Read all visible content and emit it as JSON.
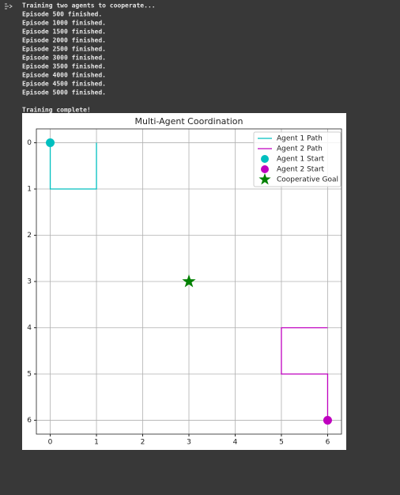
{
  "console": {
    "lines": [
      "Training two agents to cooperate...",
      "Episode 500 finished.",
      "Episode 1000 finished.",
      "Episode 1500 finished.",
      "Episode 2000 finished.",
      "Episode 2500 finished.",
      "Episode 3000 finished.",
      "Episode 3500 finished.",
      "Episode 4000 finished.",
      "Episode 4500 finished.",
      "Episode 5000 finished."
    ],
    "final": "Training complete!"
  },
  "chart_data": {
    "type": "line",
    "title": "Multi-Agent Coordination",
    "series": [
      {
        "name": "Agent 1 Path",
        "kind": "line",
        "color": "#00bfbf",
        "x": [
          0,
          0,
          1,
          1
        ],
        "y": [
          0,
          1,
          1,
          0
        ]
      },
      {
        "name": "Agent 2 Path",
        "kind": "line",
        "color": "#bf00bf",
        "x": [
          6,
          6,
          5,
          5,
          6
        ],
        "y": [
          6,
          5,
          5,
          4,
          4
        ]
      },
      {
        "name": "Agent 1 Start",
        "kind": "circle",
        "color": "#00bfbf",
        "x": [
          0
        ],
        "y": [
          0
        ]
      },
      {
        "name": "Agent 2 Start",
        "kind": "circle",
        "color": "#bf00bf",
        "x": [
          6
        ],
        "y": [
          6
        ]
      },
      {
        "name": "Cooperative Goal",
        "kind": "star",
        "color": "#008000",
        "x": [
          3
        ],
        "y": [
          3
        ]
      }
    ],
    "xlim": [
      -0.3,
      6.3
    ],
    "ylim": [
      6.3,
      -0.3
    ],
    "xticks": [
      0,
      1,
      2,
      3,
      4,
      5,
      6
    ],
    "yticks": [
      0,
      1,
      2,
      3,
      4,
      5,
      6
    ],
    "grid": true,
    "legend": "upper right"
  }
}
